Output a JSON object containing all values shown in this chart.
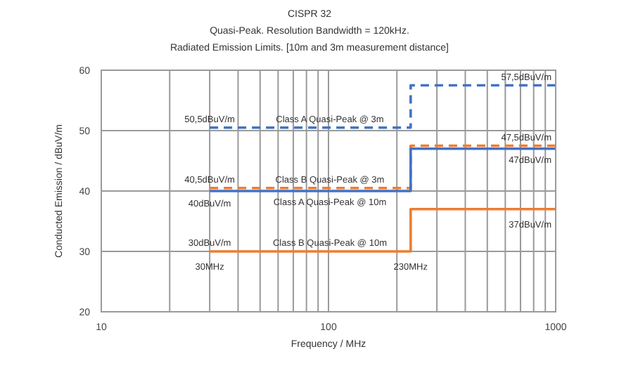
{
  "chart_data": {
    "type": "step",
    "title": "CISPR 32",
    "subtitle": "Quasi-Peak. Resolution Bandwidth = 120kHz.\nRadiated Emission Limits. [10m and 3m measurement distance]",
    "xlabel": "Frequency / MHz",
    "ylabel": "Conducted Emission / dBuV/m",
    "log": "x",
    "xlim": [
      10,
      1000
    ],
    "ylim": [
      20,
      60
    ],
    "xticks": [
      10,
      {
        "value": 20,
        "label": null
      },
      {
        "value": 30,
        "label": null
      },
      {
        "value": 40,
        "label": null
      },
      {
        "value": 50,
        "label": null
      },
      {
        "value": 60,
        "label": null
      },
      {
        "value": 70,
        "label": null
      },
      {
        "value": 80,
        "label": null
      },
      {
        "value": 90,
        "label": null
      },
      100,
      {
        "value": 200,
        "label": null
      },
      {
        "value": 300,
        "label": null
      },
      {
        "value": 400,
        "label": null
      },
      {
        "value": 500,
        "label": null
      },
      {
        "value": 600,
        "label": null
      },
      {
        "value": 700,
        "label": null
      },
      {
        "value": 800,
        "label": null
      },
      {
        "value": 900,
        "label": null
      },
      1000
    ],
    "yticks": [
      20,
      30,
      40,
      50,
      60
    ],
    "grid": true,
    "series": [
      {
        "name": "Class A Quasi-Peak @ 3m",
        "color": "#4472c4",
        "line_style": "dashed",
        "x": [
          30,
          230,
          1000
        ],
        "values": [
          50.5,
          57.5,
          57.5
        ]
      },
      {
        "name": "Class B Quasi-Peak @ 3m",
        "color": "#ed7d31",
        "line_style": "dashed",
        "x": [
          30,
          230,
          1000
        ],
        "values": [
          40.5,
          47.5,
          47.5
        ]
      },
      {
        "name": "Class A Quasi-Peak @ 10m",
        "color": "#4472c4",
        "line_style": "solid",
        "x": [
          30,
          230,
          1000
        ],
        "values": [
          40,
          47,
          47
        ]
      },
      {
        "name": "Class B Quasi-Peak @ 10m",
        "color": "#ed7d31",
        "line_style": "solid",
        "x": [
          30,
          230,
          1000
        ],
        "values": [
          30,
          37,
          37
        ]
      }
    ],
    "annotations": [
      {
        "text": "50,5dBuV/m",
        "x": 30,
        "y": 50.5
      },
      {
        "text": "40,5dBuV/m",
        "x": 30,
        "y": 40.5
      },
      {
        "text": "40dBuV/m",
        "x": 30,
        "y": 40
      },
      {
        "text": "30dBuV/m",
        "x": 30,
        "y": 30
      },
      {
        "text": "30MHz",
        "x": 30,
        "y": 30
      },
      {
        "text": "230MHz",
        "x": 230,
        "y": 30
      },
      {
        "text": "57,5dBuV/m",
        "x": 1000,
        "y": 57.5
      },
      {
        "text": "47,5dBuV/m",
        "x": 1000,
        "y": 47.5
      },
      {
        "text": "47dBuV/m",
        "x": 1000,
        "y": 47
      },
      {
        "text": "37dBuV/m",
        "x": 1000,
        "y": 37
      }
    ]
  }
}
